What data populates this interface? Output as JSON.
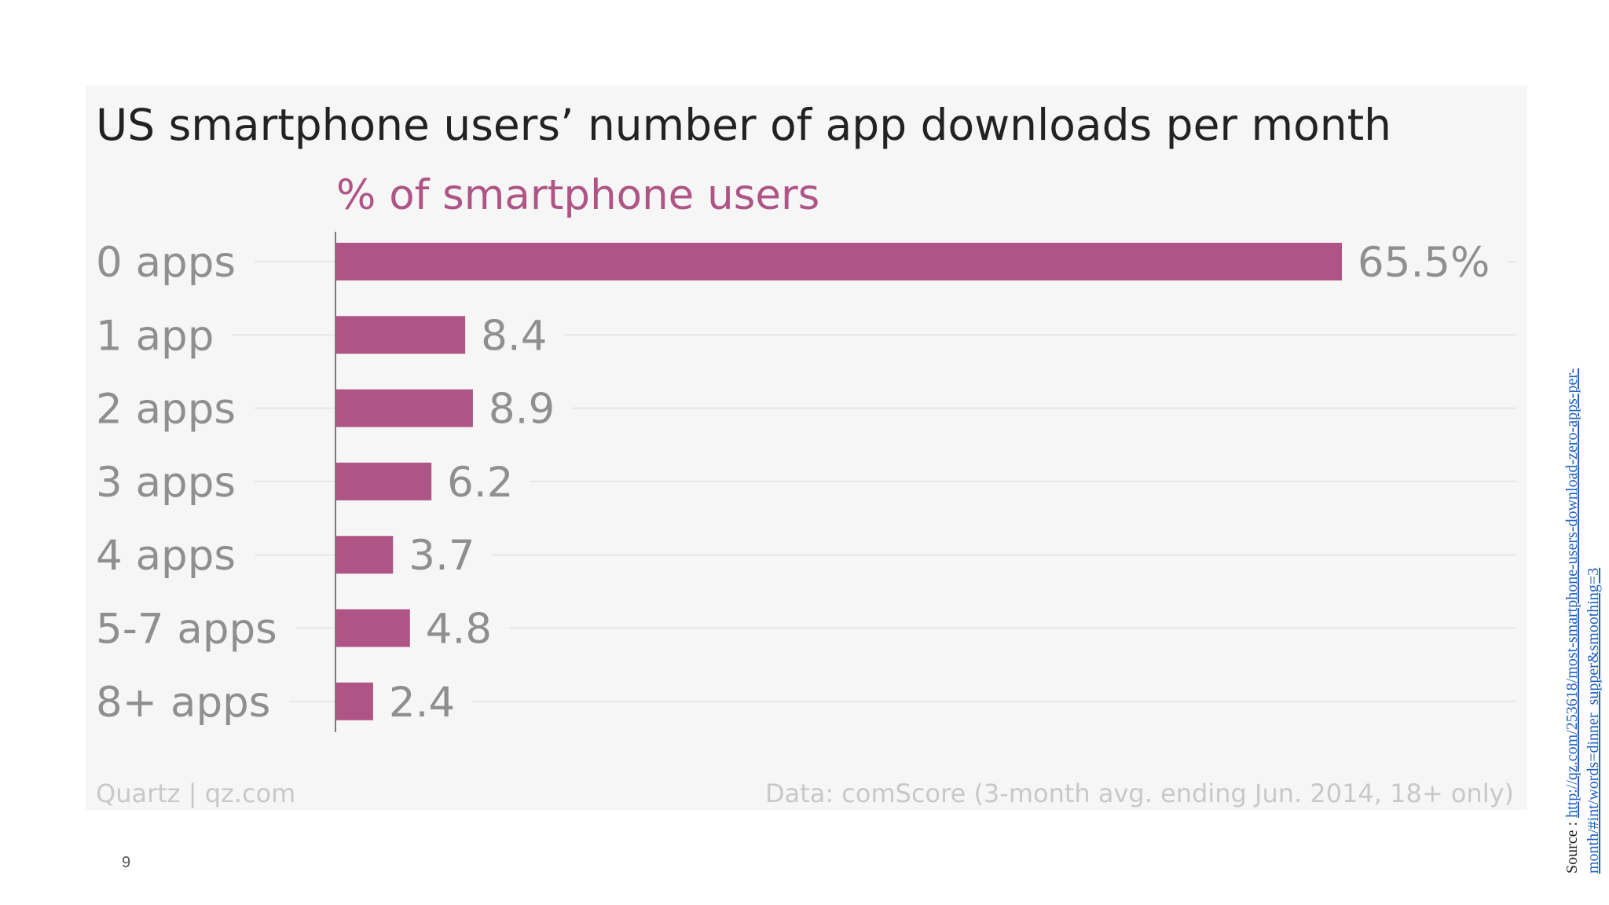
{
  "slide": {
    "page_number": "9",
    "source_prefix": "Source : ",
    "source_link": "http://qz.com/253618/most-smartphone-users-download-zero-apps-per-month/#int/words=dinner_supper&smoothing=3"
  },
  "colors": {
    "bar": "#ae5585",
    "card_background": "#f6f6f6",
    "label_gray": "#8f8f8f",
    "link_blue": "#1f5fbf"
  },
  "chart_data": {
    "type": "bar",
    "orientation": "horizontal",
    "title": "US smartphone users’ number of app downloads per month",
    "units_label": "% of smartphone users",
    "categories": [
      "0 apps",
      "1 app",
      "2 apps",
      "3 apps",
      "4 apps",
      "5-7 apps",
      "8+ apps"
    ],
    "values": [
      65.5,
      8.4,
      8.9,
      6.2,
      3.7,
      4.8,
      2.4
    ],
    "value_labels": [
      "65.5%",
      "8.4",
      "8.9",
      "6.2",
      "3.7",
      "4.8",
      "2.4"
    ],
    "xlim": [
      0,
      65.5
    ],
    "grid": true,
    "credit": "Quartz | qz.com",
    "data_source": "Data: comScore (3-month avg. ending Jun. 2014, 18+ only)"
  }
}
